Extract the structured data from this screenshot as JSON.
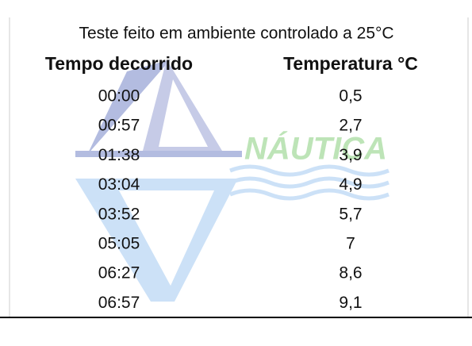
{
  "table": {
    "title": "Teste feito em ambiente controlado a 25°C",
    "header": [
      "Tempo decorrido",
      "Temperatura °C"
    ],
    "rows": [
      [
        "00:00",
        "0,5"
      ],
      [
        "00:57",
        "2,7"
      ],
      [
        "01:38",
        "3,9"
      ],
      [
        "03:04",
        "4,9"
      ],
      [
        "03:52",
        "5,7"
      ],
      [
        "05:05",
        "7"
      ],
      [
        "06:27",
        "8,6"
      ],
      [
        "06:57",
        "9,1"
      ]
    ]
  },
  "watermark": {
    "text": "NÁUTICA"
  }
}
